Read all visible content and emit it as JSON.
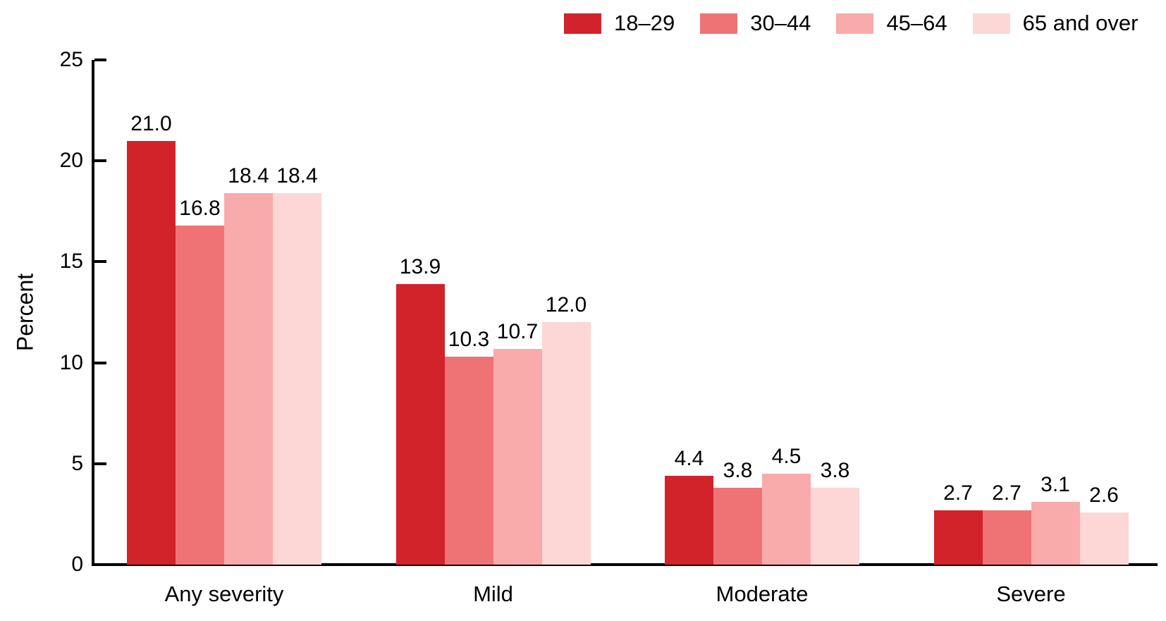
{
  "chart_data": {
    "type": "bar",
    "title": "",
    "ylabel": "Percent",
    "xlabel": "",
    "categories": [
      "Any severity",
      "Mild",
      "Moderate",
      "Severe"
    ],
    "series": [
      {
        "name": "18–29",
        "color": "#d2232a",
        "values": [
          21.0,
          13.9,
          4.4,
          2.7
        ]
      },
      {
        "name": "30–44",
        "color": "#ef7375",
        "values": [
          16.8,
          10.3,
          3.8,
          2.7
        ]
      },
      {
        "name": "45–64",
        "color": "#f8abaa",
        "values": [
          18.4,
          10.7,
          4.5,
          3.1
        ]
      },
      {
        "name": "65 and over",
        "color": "#fcd7d5",
        "values": [
          18.4,
          12.0,
          3.8,
          2.6
        ]
      }
    ],
    "yticks": [
      0,
      5,
      10,
      15,
      20,
      25
    ],
    "ylim": [
      0,
      25
    ],
    "grid": false,
    "legend_position": "top-right",
    "value_labels": true,
    "value_label_decimals": 1,
    "axis_color": "#000000",
    "text_color": "#000000",
    "background_color": "#ffffff"
  }
}
